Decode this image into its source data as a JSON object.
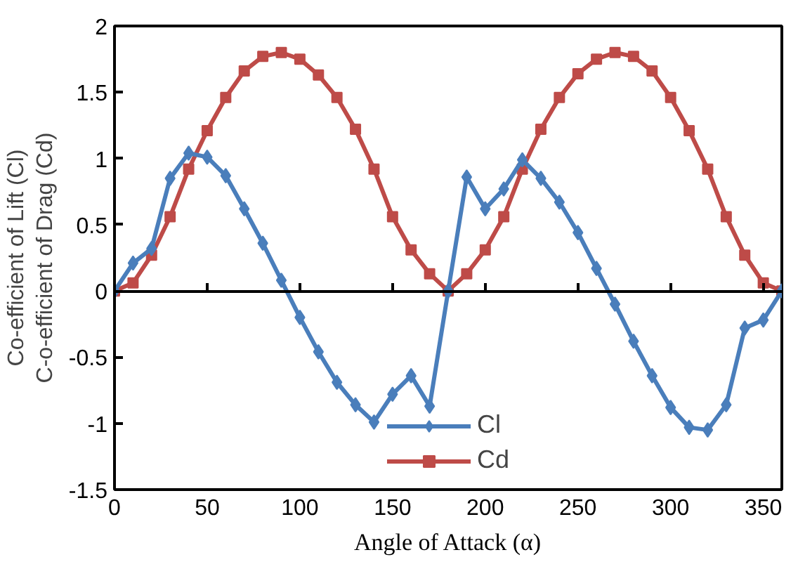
{
  "chart_data": {
    "type": "line",
    "xlabel": "Angle of Attack (α)",
    "ylabel": "Co-efficient of Lift (Cl)\nC-o-efficient of Drag (Cd)",
    "x": [
      0,
      10,
      20,
      30,
      40,
      50,
      60,
      70,
      80,
      90,
      100,
      110,
      120,
      130,
      140,
      150,
      160,
      170,
      180,
      190,
      200,
      210,
      220,
      230,
      240,
      250,
      260,
      270,
      280,
      290,
      300,
      310,
      320,
      330,
      340,
      350,
      360
    ],
    "series": [
      {
        "name": "Cl",
        "color": "#4a7ebb",
        "marker": "diamond",
        "values": [
          0,
          0.21,
          0.32,
          0.85,
          1.04,
          1.01,
          0.87,
          0.62,
          0.36,
          0.08,
          -0.2,
          -0.46,
          -0.69,
          -0.86,
          -0.99,
          -0.78,
          -0.64,
          -0.87,
          0,
          0.86,
          0.62,
          0.77,
          0.99,
          0.85,
          0.67,
          0.44,
          0.17,
          -0.1,
          -0.38,
          -0.64,
          -0.88,
          -1.03,
          -1.05,
          -0.86,
          -0.28,
          -0.22,
          0
        ]
      },
      {
        "name": "Cd",
        "color": "#be4b48",
        "marker": "square",
        "values": [
          0,
          0.06,
          0.27,
          0.56,
          0.92,
          1.21,
          1.46,
          1.66,
          1.77,
          1.8,
          1.75,
          1.63,
          1.46,
          1.22,
          0.92,
          0.56,
          0.31,
          0.13,
          0,
          0.13,
          0.31,
          0.56,
          0.92,
          1.22,
          1.46,
          1.64,
          1.75,
          1.8,
          1.77,
          1.66,
          1.46,
          1.21,
          0.92,
          0.56,
          0.27,
          0.06,
          0
        ]
      }
    ],
    "xlim": [
      0,
      360
    ],
    "ylim": [
      -1.5,
      2
    ],
    "xticks": [
      0,
      50,
      100,
      150,
      200,
      250,
      300,
      350
    ],
    "yticks": [
      -1.5,
      -1,
      -0.5,
      0,
      0.5,
      1,
      1.5,
      2
    ],
    "legend": "bottom",
    "line_style": "solid"
  }
}
